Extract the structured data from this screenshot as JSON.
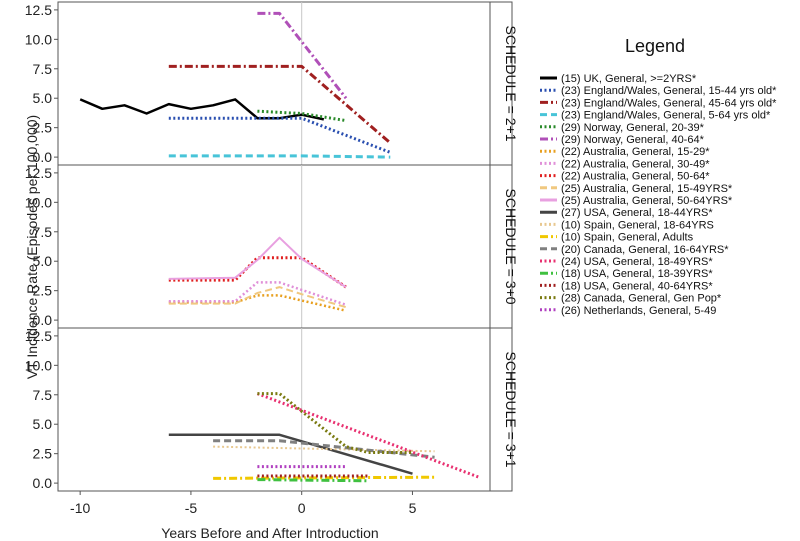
{
  "chart_data": {
    "type": "line",
    "xlabel": "Years Before and After Introduction",
    "ylabel": "VT Incidence Rate (Episodes per 100,000)",
    "xlim": [
      -11,
      8.5
    ],
    "ylim": [
      -0.5,
      13
    ],
    "xticks": [
      -10,
      -5,
      0,
      5
    ],
    "yticks": [
      0.0,
      2.5,
      5.0,
      7.5,
      10.0,
      12.5
    ],
    "xtick_labels": [
      "-10",
      "-5",
      "0",
      "5"
    ],
    "ytick_labels": [
      "0.0",
      "2.5",
      "5.0",
      "7.5",
      "10.0",
      "12.5"
    ],
    "vline_x": 0,
    "legend_title": "Legend",
    "panels": [
      {
        "label": "SCHEDULE = 2+1",
        "series": [
          {
            "name": "(15) UK, General, >=2YRS*",
            "color": "#000000",
            "dash": "solid",
            "width": 2.5,
            "x": [
              -10,
              -9,
              -8,
              -7,
              -6,
              -5,
              -4,
              -3,
              -2,
              -1,
              0,
              1
            ],
            "y": [
              4.9,
              4.1,
              4.4,
              3.7,
              4.5,
              4.1,
              4.4,
              4.9,
              3.3,
              3.3,
              3.6,
              3.2
            ]
          },
          {
            "name": "(23) England/Wales, General, 15-44 yrs old*",
            "color": "#2a4fb0",
            "dash": "dot",
            "width": 3,
            "x": [
              -6,
              0,
              4
            ],
            "y": [
              3.3,
              3.3,
              0.4
            ]
          },
          {
            "name": "(23) England/Wales, General, 45-64 yrs old*",
            "color": "#a02020",
            "dash": "dashdot",
            "width": 3,
            "x": [
              -6,
              0,
              4
            ],
            "y": [
              7.7,
              7.7,
              1.2
            ]
          },
          {
            "name": "(23) England/Wales, General, 5-64 yrs old*",
            "color": "#48c4d8",
            "dash": "dash",
            "width": 3,
            "x": [
              -6,
              0,
              4
            ],
            "y": [
              0.1,
              0.1,
              0.0
            ]
          },
          {
            "name": "(29) Norway, General, 20-39*",
            "color": "#2a8a2a",
            "dash": "dot",
            "width": 3,
            "x": [
              -2,
              0,
              2
            ],
            "y": [
              3.9,
              3.7,
              3.1
            ]
          },
          {
            "name": "(29) Norway, General, 40-64*",
            "color": "#b050b8",
            "dash": "dashdot",
            "width": 3,
            "x": [
              -2,
              -1,
              2
            ],
            "y": [
              12.2,
              12.2,
              5.0
            ]
          }
        ]
      },
      {
        "label": "SCHEDULE = 3+0",
        "series": [
          {
            "name": "(22) Australia, General, 15-29*",
            "color": "#e8a020",
            "dash": "dot",
            "width": 2.5,
            "x": [
              -6,
              -3,
              -2,
              -1,
              2
            ],
            "y": [
              1.5,
              1.5,
              2.1,
              2.1,
              0.8
            ]
          },
          {
            "name": "(22) Australia, General, 30-49*",
            "color": "#e090d8",
            "dash": "dot",
            "width": 2.5,
            "x": [
              -6,
              -3,
              -2,
              -1,
              2
            ],
            "y": [
              1.6,
              1.6,
              3.2,
              3.2,
              1.3
            ]
          },
          {
            "name": "(22) Australia, General, 50-64*",
            "color": "#e02020",
            "dash": "dot",
            "width": 3,
            "x": [
              -6,
              -3,
              -2,
              0,
              2
            ],
            "y": [
              3.4,
              3.4,
              5.3,
              5.3,
              2.8
            ]
          },
          {
            "name": "(25) Australia, General, 15-49YRS*",
            "color": "#f0c880",
            "dash": "dash",
            "width": 2,
            "x": [
              -6,
              -3,
              -2,
              -1,
              0,
              2
            ],
            "y": [
              1.4,
              1.4,
              2.3,
              2.8,
              2.2,
              1.1
            ]
          },
          {
            "name": "(25) Australia, General, 50-64YRS*",
            "color": "#e8a0e0",
            "dash": "solid",
            "width": 2,
            "x": [
              -6,
              -3,
              -2,
              -1,
              0,
              2
            ],
            "y": [
              3.5,
              3.6,
              5.1,
              7.0,
              5.2,
              2.8
            ]
          }
        ]
      },
      {
        "label": "SCHEDULE = 3+1",
        "series": [
          {
            "name": "(27) USA, General, 18-44YRS*",
            "color": "#444444",
            "dash": "solid",
            "width": 2.5,
            "x": [
              -6,
              -1,
              5
            ],
            "y": [
              4.1,
              4.1,
              0.8
            ]
          },
          {
            "name": "(10) Spain, General, 18-64YRS",
            "color": "#e8c890",
            "dash": "dot",
            "width": 2,
            "x": [
              -4,
              6
            ],
            "y": [
              3.1,
              2.7
            ]
          },
          {
            "name": "(10) Spain, General, Adults",
            "color": "#f0c800",
            "dash": "dashdot",
            "width": 3,
            "x": [
              -4,
              6
            ],
            "y": [
              0.4,
              0.5
            ]
          },
          {
            "name": "(20) Canada, General, 16-64YRS*",
            "color": "#808080",
            "dash": "dash",
            "width": 3,
            "x": [
              -4,
              -1,
              6
            ],
            "y": [
              3.6,
              3.6,
              2.2
            ]
          },
          {
            "name": "(24) USA, General, 18-49YRS*",
            "color": "#e83070",
            "dash": "dot",
            "width": 3,
            "x": [
              -2,
              8
            ],
            "y": [
              7.6,
              0.5
            ]
          },
          {
            "name": "(18) USA, General, 18-39YRS*",
            "color": "#40c040",
            "dash": "dashdot",
            "width": 3,
            "x": [
              -2,
              3
            ],
            "y": [
              0.3,
              0.2
            ]
          },
          {
            "name": "(18) USA, General, 40-64YRS*",
            "color": "#a02020",
            "dash": "dot",
            "width": 3,
            "x": [
              -2,
              3
            ],
            "y": [
              0.6,
              0.6
            ]
          },
          {
            "name": "(28) Canada, General, Gen Pop*",
            "color": "#7a7a10",
            "dash": "dot",
            "width": 3,
            "x": [
              -2,
              -1,
              2,
              3,
              5
            ],
            "y": [
              7.6,
              7.6,
              3.1,
              2.6,
              2.6
            ]
          },
          {
            "name": "(26) Netherlands, General, 5-49",
            "color": "#b040c0",
            "dash": "dot",
            "width": 3,
            "x": [
              -2,
              0,
              2
            ],
            "y": [
              1.4,
              1.4,
              1.4
            ]
          }
        ]
      }
    ]
  }
}
